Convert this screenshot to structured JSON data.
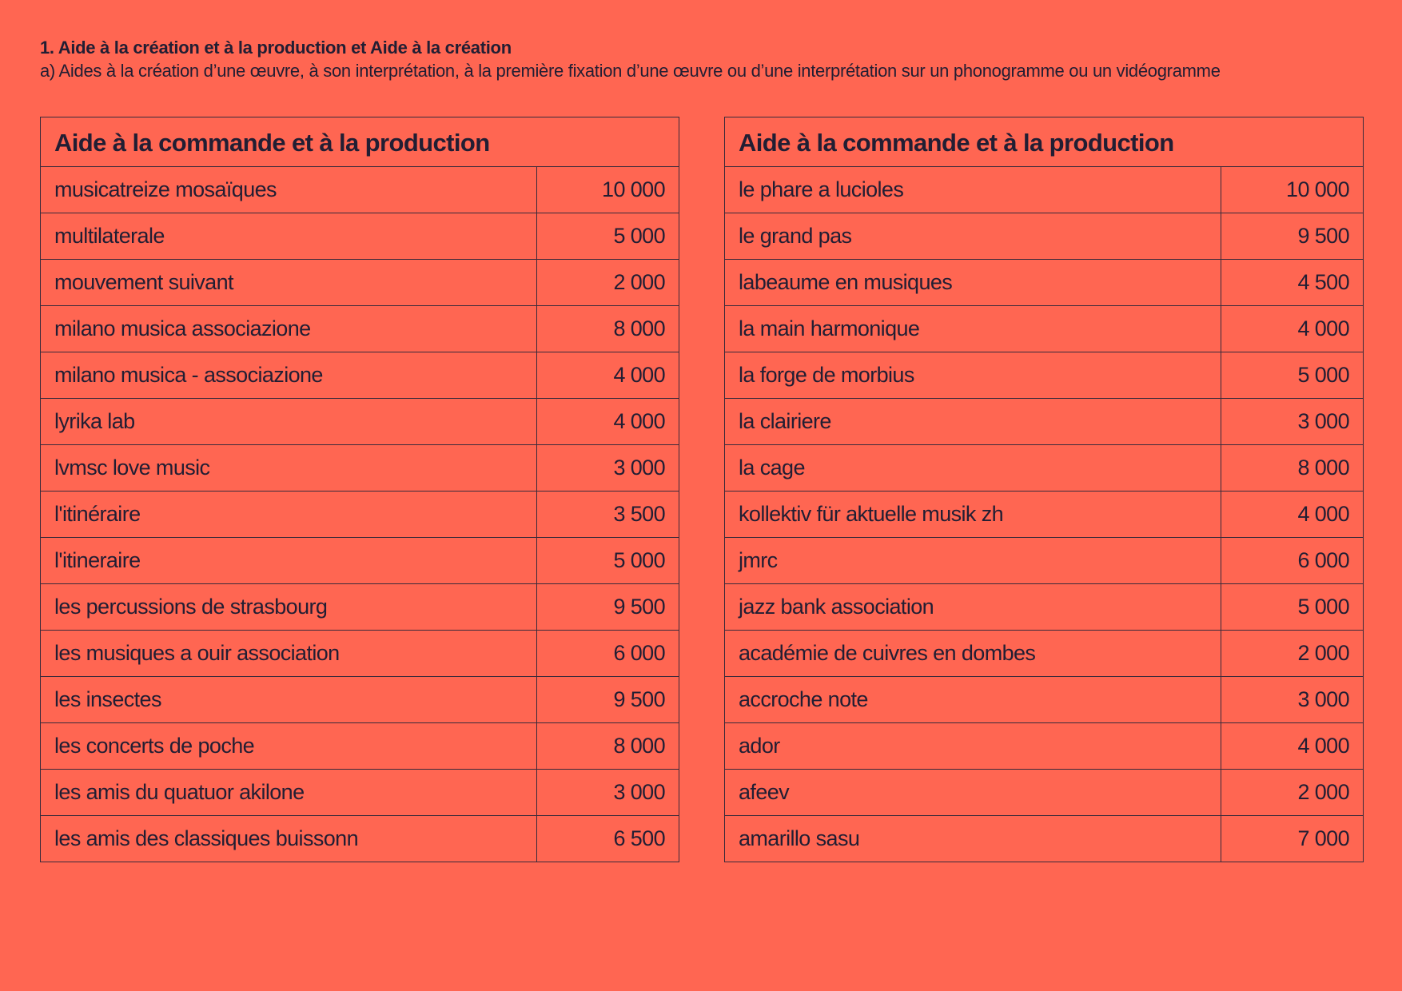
{
  "header": {
    "title": "1. Aide à la création et à la production et Aide à la création",
    "subtitle": "a) Aides à la création d’une œuvre, à son interprétation, à la première fixation d’une œuvre ou d’une interprétation sur un phonogramme ou un vidéogramme"
  },
  "tables": [
    {
      "title": "Aide à la commande et à la production",
      "rows": [
        {
          "name": "musicatreize mosaïques",
          "amount": "10 000"
        },
        {
          "name": "multilaterale",
          "amount": "5 000"
        },
        {
          "name": "mouvement suivant",
          "amount": "2 000"
        },
        {
          "name": "milano musica associazione",
          "amount": "8 000"
        },
        {
          "name": "milano musica - associazione",
          "amount": "4 000"
        },
        {
          "name": "lyrika lab",
          "amount": "4 000"
        },
        {
          "name": "lvmsc love music",
          "amount": "3 000"
        },
        {
          "name": "l'itinéraire",
          "amount": "3 500"
        },
        {
          "name": "l'itineraire",
          "amount": "5 000"
        },
        {
          "name": "les percussions de strasbourg",
          "amount": "9 500"
        },
        {
          "name": "les musiques a ouir association",
          "amount": "6 000"
        },
        {
          "name": "les insectes",
          "amount": "9 500"
        },
        {
          "name": "les concerts de poche",
          "amount": "8 000"
        },
        {
          "name": "les amis du quatuor akilone",
          "amount": "3 000"
        },
        {
          "name": "les amis des classiques buissonn",
          "amount": "6 500"
        }
      ]
    },
    {
      "title": "Aide à la commande et à la production",
      "rows": [
        {
          "name": "le phare a lucioles",
          "amount": "10 000"
        },
        {
          "name": "le grand pas",
          "amount": "9 500"
        },
        {
          "name": "labeaume en musiques",
          "amount": "4 500"
        },
        {
          "name": "la main harmonique",
          "amount": "4 000"
        },
        {
          "name": "la forge de morbius",
          "amount": "5 000"
        },
        {
          "name": "la clairiere",
          "amount": "3 000"
        },
        {
          "name": "la cage",
          "amount": "8 000"
        },
        {
          "name": "kollektiv für aktuelle musik zh",
          "amount": "4 000"
        },
        {
          "name": "jmrc",
          "amount": "6 000"
        },
        {
          "name": "jazz bank association",
          "amount": "5 000"
        },
        {
          "name": "académie de cuivres en dombes",
          "amount": "2 000"
        },
        {
          "name": "accroche note",
          "amount": "3 000"
        },
        {
          "name": "ador",
          "amount": "4 000"
        },
        {
          "name": "afeev",
          "amount": "2 000"
        },
        {
          "name": "amarillo sasu",
          "amount": "7 000"
        }
      ]
    }
  ]
}
